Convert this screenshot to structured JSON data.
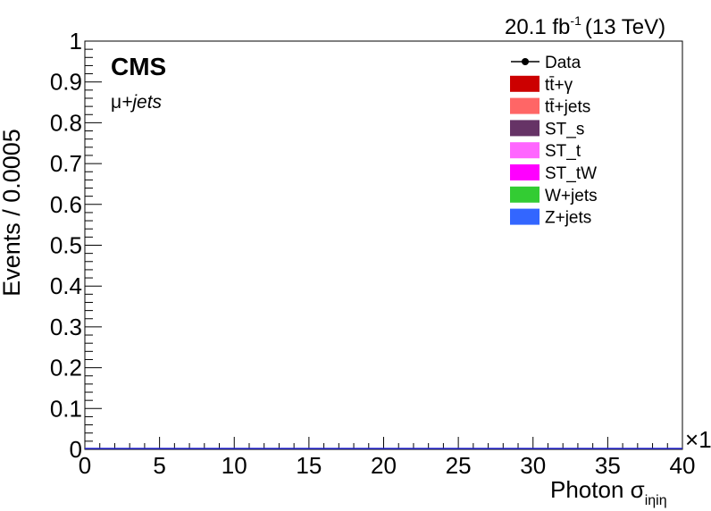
{
  "header": {
    "lumi_value": "20.1 fb",
    "lumi_exponent": "-1",
    "energy": "(13 TeV)"
  },
  "labels": {
    "experiment": "CMS",
    "channel_mu": "μ",
    "channel_rest": "+jets",
    "x_exponent_times": "×",
    "x_exponent_value": "1"
  },
  "legend": {
    "entries": [
      {
        "key": "data",
        "label": "Data",
        "style": "marker",
        "color": "#000000"
      },
      {
        "key": "ttgamma",
        "label": "tt̄+γ",
        "style": "box",
        "color": "#cc0000"
      },
      {
        "key": "ttjets",
        "label": "tt̄+jets",
        "style": "box",
        "color": "#ff6666"
      },
      {
        "key": "st_s",
        "label": "ST_s",
        "style": "box",
        "color": "#663366"
      },
      {
        "key": "st_t",
        "label": "ST_t",
        "style": "box",
        "color": "#ff66ff"
      },
      {
        "key": "st_tw",
        "label": "ST_tW",
        "style": "box",
        "color": "#ff00ff"
      },
      {
        "key": "wjets",
        "label": "W+jets",
        "style": "box",
        "color": "#33cc33"
      },
      {
        "key": "zjets",
        "label": "Z+jets",
        "style": "box",
        "color": "#3366ff"
      }
    ]
  },
  "chart_data": {
    "type": "bar",
    "title": "",
    "xlabel": "Photon σ",
    "xlabel_subscript": "iηiη",
    "ylabel": "Events / 0.0005",
    "xlim": [
      0,
      40
    ],
    "ylim": [
      0,
      1
    ],
    "x_ticks": [
      "0",
      "5",
      "10",
      "15",
      "20",
      "25",
      "30",
      "35",
      "40"
    ],
    "y_ticks": [
      "0",
      "0.1",
      "0.2",
      "0.3",
      "0.4",
      "0.5",
      "0.6",
      "0.7",
      "0.8",
      "0.9",
      "1"
    ],
    "legend_position": "top-right",
    "grid": false,
    "series": [
      {
        "name": "Data",
        "values": []
      },
      {
        "name": "tt̄+γ",
        "values": []
      },
      {
        "name": "tt̄+jets",
        "values": []
      },
      {
        "name": "ST_s",
        "values": []
      },
      {
        "name": "ST_t",
        "values": []
      },
      {
        "name": "ST_tW",
        "values": []
      },
      {
        "name": "W+jets",
        "values": []
      },
      {
        "name": "Z+jets",
        "values": []
      }
    ]
  }
}
